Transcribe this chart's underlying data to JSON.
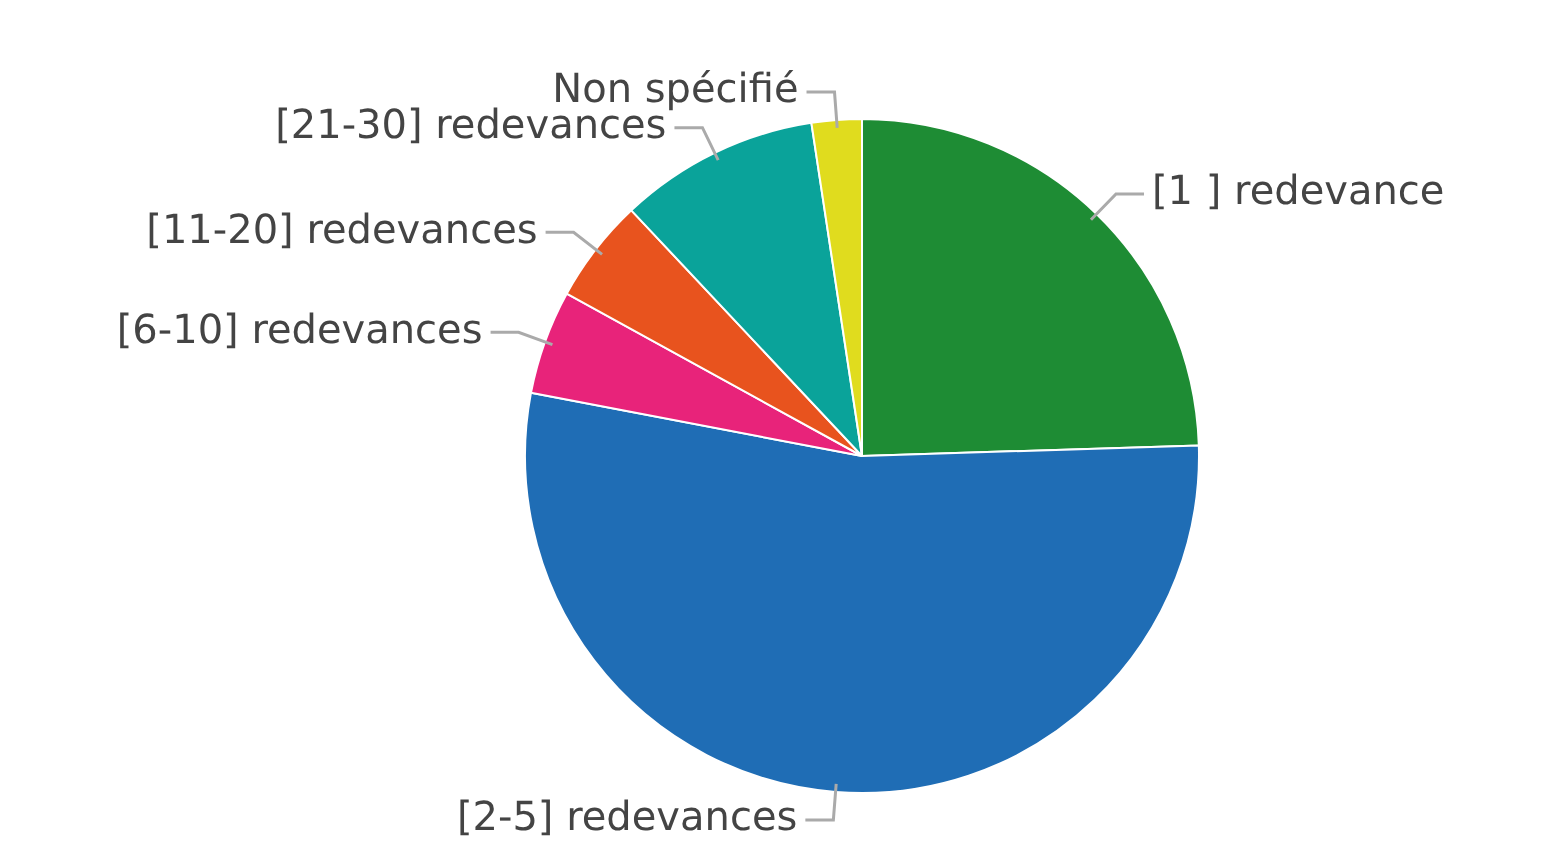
{
  "chart_data": {
    "type": "pie",
    "categories": [
      "[1 ] redevance",
      "[2-5] redevances",
      "[6-10] redevances",
      "[11-20] redevances",
      "[21-30] redevances",
      "Non spécifié"
    ],
    "values": [
      24.5,
      53.5,
      5,
      5,
      9.6,
      2.4
    ],
    "colors": [
      "#1e8c34",
      "#1f6db5",
      "#e8237a",
      "#e8531e",
      "#0aa39a",
      "#e0dc1e"
    ],
    "legend": false
  }
}
